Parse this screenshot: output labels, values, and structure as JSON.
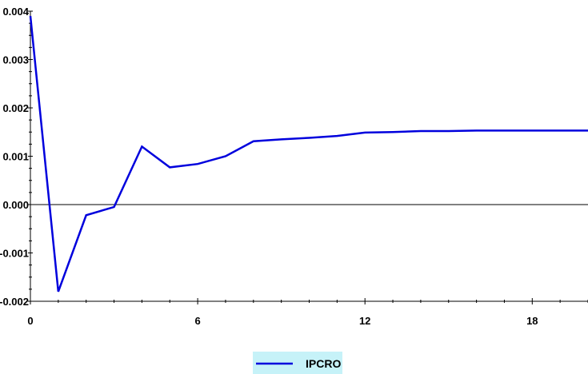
{
  "chart_data": {
    "type": "line",
    "title": "",
    "xlabel": "",
    "ylabel": "",
    "xlim": [
      0,
      20
    ],
    "ylim": [
      -0.002,
      0.004
    ],
    "x_ticks": [
      0,
      6,
      12,
      18
    ],
    "x_tick_labels": [
      "0",
      "6",
      "12",
      "18"
    ],
    "y_ticks": [
      -0.002,
      -0.001,
      0.0,
      0.001,
      0.002,
      0.003,
      0.004
    ],
    "y_tick_labels": [
      "-0.002",
      "-0.001",
      "0.000",
      "0.001",
      "0.002",
      "0.003",
      "0.004"
    ],
    "grid": false,
    "zero_line": true,
    "legend_position": "bottom-center",
    "series": [
      {
        "name": "IPCRO",
        "color": "#0000dd",
        "x": [
          0,
          1,
          2,
          3,
          4,
          5,
          6,
          7,
          8,
          9,
          10,
          11,
          12,
          13,
          14,
          15,
          16,
          17,
          18,
          19,
          20
        ],
        "values": [
          0.0039,
          -0.0018,
          -0.00022,
          -5e-05,
          0.0012,
          0.00077,
          0.00084,
          0.001,
          0.00131,
          0.00135,
          0.00138,
          0.00142,
          0.00149,
          0.0015,
          0.00152,
          0.00152,
          0.00153,
          0.00153,
          0.00153,
          0.00153,
          0.00153
        ]
      }
    ]
  }
}
